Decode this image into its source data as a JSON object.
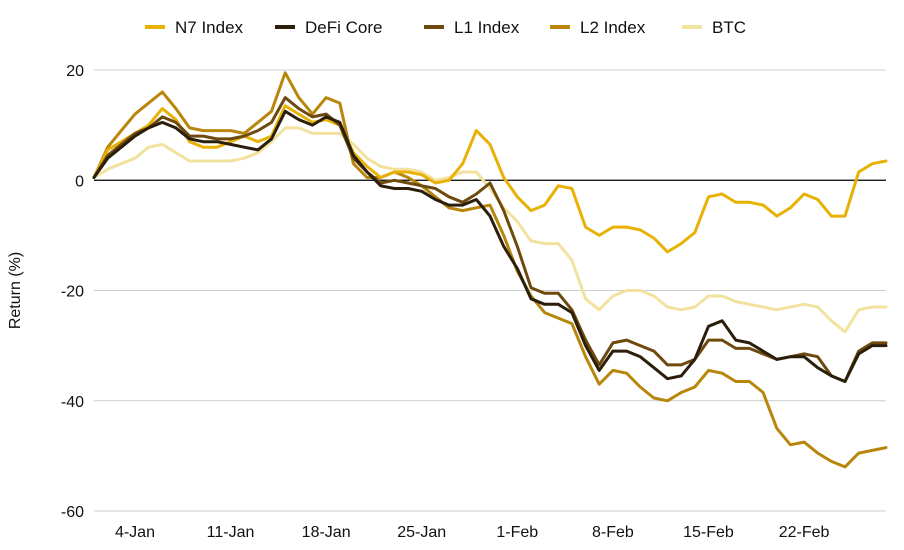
{
  "chart_data": {
    "type": "line",
    "title": "",
    "xlabel": "",
    "ylabel": "Return (%)",
    "ylim": [
      -60,
      20
    ],
    "yticks": [
      20,
      0,
      -20,
      -40,
      -60
    ],
    "grid": "horizontal",
    "legend_position": "top",
    "x_tick_labels": [
      "4-Jan",
      "11-Jan",
      "18-Jan",
      "25-Jan",
      "1-Feb",
      "8-Feb",
      "15-Feb",
      "22-Feb"
    ],
    "x_tick_indices": [
      3,
      10,
      17,
      24,
      31,
      38,
      45,
      52
    ],
    "series": [
      {
        "name": "N7 Index",
        "color": "#E8B106",
        "values": [
          0.5,
          5.5,
          7.0,
          8.5,
          10.0,
          13.0,
          11.0,
          7.0,
          6.0,
          6.0,
          7.0,
          8.0,
          7.0,
          8.0,
          13.5,
          12.0,
          10.5,
          11.0,
          10.0,
          5.0,
          2.5,
          0.5,
          1.5,
          1.5,
          1.0,
          -0.5,
          0.0,
          3.0,
          9.0,
          6.5,
          0.5,
          -3.0,
          -5.5,
          -4.5,
          -1.0,
          -1.5,
          -8.5,
          -10.0,
          -8.5,
          -8.5,
          -9.0,
          -10.5,
          -13.0,
          -11.5,
          -9.5,
          -3.0,
          -2.5,
          -4.0,
          -4.0,
          -4.5,
          -6.5,
          -5.0,
          -2.5,
          -3.5,
          -6.5,
          -6.5,
          1.5,
          3.0,
          3.5
        ]
      },
      {
        "name": "DeFi Core",
        "color": "#2B1F0C",
        "values": [
          0.5,
          4.0,
          6.0,
          8.0,
          9.5,
          10.5,
          9.5,
          7.5,
          7.0,
          7.0,
          6.5,
          6.0,
          5.5,
          7.5,
          12.5,
          11.0,
          10.0,
          11.5,
          10.5,
          4.5,
          1.5,
          -1.0,
          -1.5,
          -1.5,
          -2.0,
          -3.5,
          -4.5,
          -4.5,
          -3.5,
          -6.5,
          -12.0,
          -16.0,
          -21.5,
          -22.5,
          -22.5,
          -24.0,
          -30.0,
          -34.5,
          -31.0,
          -31.0,
          -32.0,
          -34.0,
          -36.0,
          -35.5,
          -32.5,
          -26.5,
          -25.5,
          -29.0,
          -29.5,
          -31.0,
          -32.5,
          -32.0,
          -32.0,
          -34.0,
          -35.5,
          -36.5,
          -31.5,
          -30.0,
          -30.0
        ]
      },
      {
        "name": "L1 Index",
        "color": "#6E4A0E",
        "values": [
          0.5,
          4.5,
          6.5,
          8.5,
          9.5,
          11.5,
          10.5,
          8.0,
          8.0,
          7.5,
          7.5,
          8.0,
          9.0,
          10.5,
          15.0,
          13.0,
          11.5,
          12.0,
          10.0,
          4.0,
          1.5,
          -0.5,
          0.0,
          -0.5,
          -1.0,
          -1.5,
          -3.0,
          -4.0,
          -2.5,
          -0.5,
          -5.5,
          -12.0,
          -19.5,
          -20.5,
          -20.5,
          -23.5,
          -29.0,
          -33.5,
          -29.5,
          -29.0,
          -30.0,
          -31.0,
          -33.5,
          -33.5,
          -32.5,
          -29.0,
          -29.0,
          -30.5,
          -30.5,
          -31.5,
          -32.5,
          -32.0,
          -31.5,
          -32.0,
          -35.5,
          -36.5,
          -31.0,
          -29.5,
          -29.5
        ]
      },
      {
        "name": "L2 Index",
        "color": "#B8860B",
        "values": [
          0.5,
          6.0,
          9.0,
          12.0,
          14.0,
          16.0,
          13.0,
          9.5,
          9.0,
          9.0,
          9.0,
          8.5,
          10.5,
          12.5,
          19.5,
          15.0,
          12.0,
          15.0,
          14.0,
          3.0,
          0.5,
          0.5,
          1.5,
          0.5,
          -1.0,
          -3.0,
          -5.0,
          -5.5,
          -5.0,
          -4.5,
          -10.0,
          -16.5,
          -21.0,
          -24.0,
          -25.0,
          -26.0,
          -32.0,
          -37.0,
          -34.5,
          -35.0,
          -37.5,
          -39.5,
          -40.0,
          -38.5,
          -37.5,
          -34.5,
          -35.0,
          -36.5,
          -36.5,
          -38.5,
          -45.0,
          -48.0,
          -47.5,
          -49.5,
          -51.0,
          -52.0,
          -49.5,
          -49.0,
          -48.5
        ]
      },
      {
        "name": "BTC",
        "color": "#F2E2A0",
        "values": [
          0.5,
          2.0,
          3.0,
          4.0,
          6.0,
          6.5,
          5.0,
          3.5,
          3.5,
          3.5,
          3.5,
          4.0,
          5.0,
          7.0,
          9.5,
          9.5,
          8.5,
          8.5,
          8.5,
          6.5,
          4.0,
          2.5,
          2.0,
          2.0,
          1.5,
          0.0,
          0.5,
          1.5,
          1.5,
          -1.5,
          -5.0,
          -7.5,
          -11.0,
          -11.5,
          -11.5,
          -14.5,
          -21.5,
          -23.5,
          -21.0,
          -20.0,
          -20.0,
          -21.0,
          -23.0,
          -23.5,
          -23.0,
          -21.0,
          -21.0,
          -22.0,
          -22.5,
          -23.0,
          -23.5,
          -23.0,
          -22.5,
          -23.0,
          -25.5,
          -27.5,
          -23.5,
          -23.0,
          -23.0
        ]
      }
    ]
  }
}
